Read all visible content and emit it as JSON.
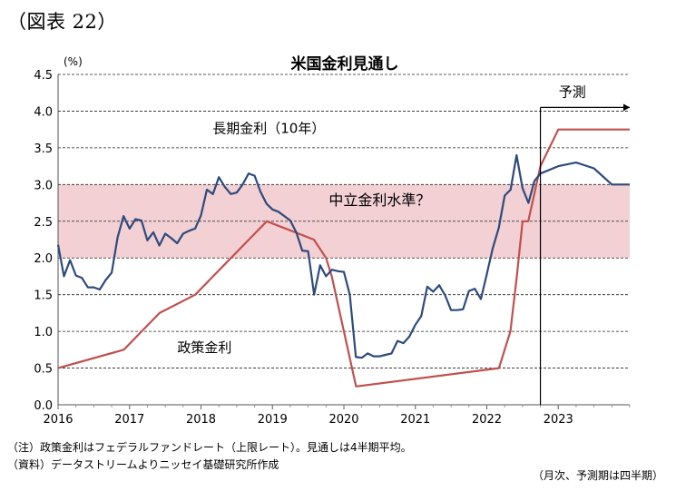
{
  "figure_label": "（図表 22）",
  "chart_data": {
    "type": "line",
    "title": "米国金利見通し",
    "y_unit": "(%)",
    "ylim": [
      0,
      4.5
    ],
    "yticks": [
      "0.0",
      "0.5",
      "1.0",
      "1.5",
      "2.0",
      "2.5",
      "3.0",
      "3.5",
      "4.0",
      "4.5"
    ],
    "xlim": [
      2016,
      2024
    ],
    "xticks": [
      "2016",
      "2017",
      "2018",
      "2019",
      "2020",
      "2021",
      "2022",
      "2023"
    ],
    "grid": "horizontal dashed",
    "shaded_band": {
      "label": "中立金利水準？",
      "from": 2.0,
      "to": 3.0,
      "color": "#f2d0d3"
    },
    "forecast": {
      "label": "予測",
      "start": 2022.75
    },
    "series": [
      {
        "name": "長期金利（10年）",
        "color": "#2e4a7d",
        "x": [
          2016.0,
          2016.083,
          2016.167,
          2016.25,
          2016.333,
          2016.417,
          2016.5,
          2016.583,
          2016.667,
          2016.75,
          2016.833,
          2016.917,
          2017.0,
          2017.083,
          2017.167,
          2017.25,
          2017.333,
          2017.417,
          2017.5,
          2017.583,
          2017.667,
          2017.75,
          2017.833,
          2017.917,
          2018.0,
          2018.083,
          2018.167,
          2018.25,
          2018.333,
          2018.417,
          2018.5,
          2018.583,
          2018.667,
          2018.75,
          2018.833,
          2018.917,
          2019.0,
          2019.083,
          2019.167,
          2019.25,
          2019.333,
          2019.417,
          2019.5,
          2019.583,
          2019.667,
          2019.75,
          2019.833,
          2019.917,
          2020.0,
          2020.083,
          2020.167,
          2020.25,
          2020.333,
          2020.417,
          2020.5,
          2020.583,
          2020.667,
          2020.75,
          2020.833,
          2020.917,
          2021.0,
          2021.083,
          2021.167,
          2021.25,
          2021.333,
          2021.417,
          2021.5,
          2021.583,
          2021.667,
          2021.75,
          2021.833,
          2021.917,
          2022.0,
          2022.083,
          2022.167,
          2022.25,
          2022.333,
          2022.417,
          2022.5,
          2022.583,
          2022.667,
          2022.75,
          2023.0,
          2023.25,
          2023.5,
          2023.75,
          2024.0
        ],
        "values": [
          2.18,
          1.75,
          1.97,
          1.76,
          1.73,
          1.6,
          1.6,
          1.57,
          1.7,
          1.8,
          2.28,
          2.57,
          2.4,
          2.53,
          2.51,
          2.24,
          2.35,
          2.17,
          2.33,
          2.27,
          2.2,
          2.33,
          2.37,
          2.4,
          2.58,
          2.93,
          2.87,
          3.1,
          2.97,
          2.87,
          2.89,
          3.0,
          3.15,
          3.12,
          2.9,
          2.74,
          2.66,
          2.63,
          2.57,
          2.51,
          2.35,
          2.1,
          2.09,
          1.5,
          1.9,
          1.75,
          1.84,
          1.82,
          1.81,
          1.5,
          0.65,
          0.64,
          0.7,
          0.66,
          0.66,
          0.68,
          0.7,
          0.87,
          0.84,
          0.93,
          1.09,
          1.21,
          1.61,
          1.54,
          1.63,
          1.49,
          1.29,
          1.29,
          1.3,
          1.55,
          1.58,
          1.44,
          1.78,
          2.13,
          2.41,
          2.85,
          2.93,
          3.4,
          2.95,
          2.75,
          3.05,
          3.15,
          3.25,
          3.3,
          3.22,
          3.0,
          3.0
        ]
      },
      {
        "name": "政策金利",
        "color": "#c0504d",
        "step": true,
        "x": [
          2016.0,
          2016.92,
          2017.17,
          2017.42,
          2017.92,
          2018.17,
          2018.42,
          2018.67,
          2018.92,
          2019.58,
          2019.75,
          2019.83,
          2020.17,
          2022.17,
          2022.33,
          2022.42,
          2022.5,
          2022.58,
          2022.75,
          2023.0,
          2023.25,
          2024.0
        ],
        "values": [
          0.5,
          0.75,
          1.0,
          1.25,
          1.5,
          1.75,
          2.0,
          2.25,
          2.5,
          2.25,
          2.0,
          1.75,
          0.25,
          0.5,
          1.0,
          1.75,
          2.5,
          2.5,
          3.25,
          3.75,
          3.75,
          3.75
        ]
      }
    ]
  },
  "notes": {
    "line1": "（注）政策金利はフェデラルファンドレート（上限レート）。見通しは4半期平均。",
    "line2": "（資料）データストリームよりニッセイ基礎研究所作成",
    "line3": "（月次、予測期は四半期）"
  }
}
